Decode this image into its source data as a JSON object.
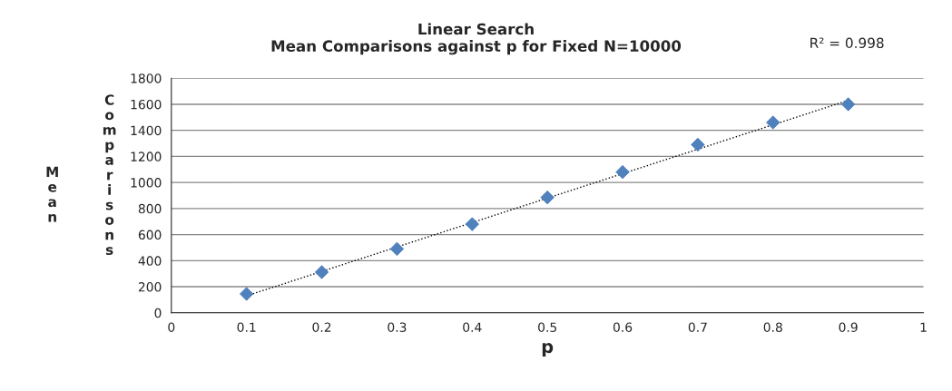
{
  "chart_data": {
    "type": "scatter",
    "title": "Linear Search\nMean Comparisons against p for Fixed N=10000",
    "xlabel": "p",
    "ylabel": "Mean Comparisons",
    "annotations": [
      "R² = 0.998"
    ],
    "x": [
      0.1,
      0.2,
      0.3,
      0.4,
      0.5,
      0.6,
      0.7,
      0.8,
      0.9
    ],
    "series": [
      {
        "color": "#4f81bd",
        "marker": "diamond",
        "values": [
          145,
          312,
          490,
          680,
          885,
          1080,
          1290,
          1460,
          1600
        ]
      },
      {
        "type": "line",
        "color": "#000000",
        "line_style": "dotted",
        "marker": "none",
        "x": [
          0.1,
          0.9
        ],
        "values": [
          130,
          1630
        ]
      }
    ],
    "xlim": [
      0,
      1
    ],
    "xticks": [
      0,
      0.1,
      0.2,
      0.3,
      0.4,
      0.5,
      0.6,
      0.7,
      0.8,
      0.9,
      1
    ],
    "ylim": [
      0,
      1800
    ],
    "yticks": [
      0,
      200,
      400,
      600,
      800,
      1000,
      1200,
      1400,
      1600,
      1800
    ],
    "grid": "y",
    "legend": false
  }
}
